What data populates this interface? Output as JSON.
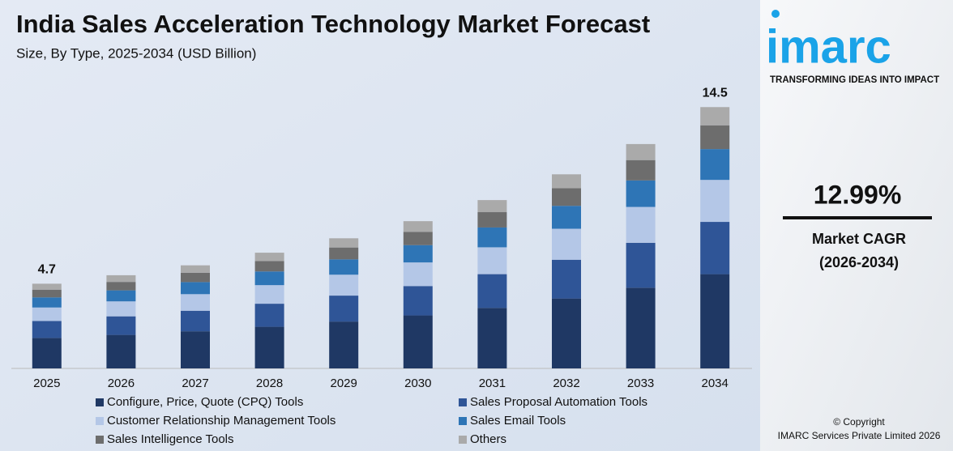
{
  "chart_data": {
    "type": "stacked-bar",
    "title": "India Sales Acceleration Technology Market Forecast",
    "subtitle": "Size, By Type, 2025-2034 (USD Billion)",
    "categories": [
      "2025",
      "2026",
      "2027",
      "2028",
      "2029",
      "2030",
      "2031",
      "2032",
      "2033",
      "2034"
    ],
    "series": [
      {
        "name": "Configure, Price, Quote (CPQ) Tools",
        "color": "#1f3864",
        "values": [
          1.69,
          1.86,
          2.06,
          2.31,
          2.6,
          2.94,
          3.36,
          3.88,
          4.48,
          5.23
        ]
      },
      {
        "name": "Sales Proposal Automation Tools",
        "color": "#2f5597",
        "values": [
          0.94,
          1.03,
          1.14,
          1.28,
          1.44,
          1.63,
          1.87,
          2.15,
          2.49,
          2.9
        ]
      },
      {
        "name": "Customer Relationship Management Tools",
        "color": "#b4c7e7",
        "values": [
          0.75,
          0.83,
          0.92,
          1.03,
          1.16,
          1.31,
          1.49,
          1.72,
          1.99,
          2.33
        ]
      },
      {
        "name": "Sales Email Tools",
        "color": "#2e75b6",
        "values": [
          0.56,
          0.61,
          0.67,
          0.76,
          0.85,
          0.96,
          1.1,
          1.27,
          1.47,
          1.71
        ]
      },
      {
        "name": "Sales Intelligence Tools",
        "color": "#6d6d6d",
        "values": [
          0.43,
          0.47,
          0.52,
          0.58,
          0.66,
          0.74,
          0.85,
          0.98,
          1.13,
          1.32
        ]
      },
      {
        "name": "Others",
        "color": "#aaaaaa",
        "values": [
          0.33,
          0.37,
          0.41,
          0.46,
          0.51,
          0.59,
          0.67,
          0.77,
          0.89,
          1.01
        ]
      }
    ],
    "annotations": [
      {
        "x": "2025",
        "value": 4.7
      },
      {
        "x": "2034",
        "value": 14.5
      }
    ],
    "ylim": [
      0,
      15.5
    ],
    "legend": "bottom"
  },
  "sidebar": {
    "logo": "imarc",
    "tagline": "TRANSFORMING IDEAS INTO IMPACT",
    "cagr": "12.99%",
    "cagr_label": "Market CAGR",
    "cagr_period": "(2026-2034)",
    "copyright": "© Copyright",
    "company": "IMARC Services Private Limited 2026"
  }
}
